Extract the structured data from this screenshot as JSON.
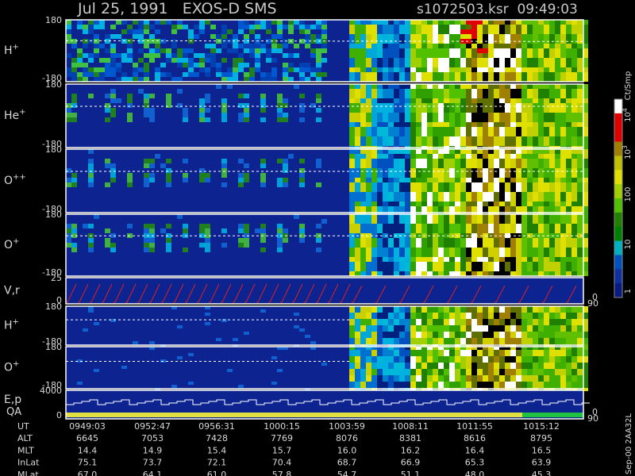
{
  "header": {
    "title": "Jul 25, 1991   EXOS-D SMS",
    "file": "s1072503.ksr  09:49:03"
  },
  "panels": [
    {
      "label": {
        "base": "H",
        "sup": "+"
      },
      "top": "180",
      "bottom": "-180"
    },
    {
      "label": {
        "base": "He",
        "sup": "+"
      },
      "top": "180",
      "bottom": "-180"
    },
    {
      "label": {
        "base": "O",
        "sup": "++"
      },
      "top": "180",
      "bottom": "-180"
    },
    {
      "label": {
        "base": "O",
        "sup": "+"
      },
      "top": "180",
      "bottom": "-180"
    },
    {
      "label": {
        "base": "V,r",
        "sup": ""
      },
      "top": "25",
      "bottom": "0",
      "right_top": "90",
      "right_bottom": "0"
    },
    {
      "label": {
        "base": "H",
        "sup": "+"
      },
      "top": "180",
      "bottom": "-180"
    },
    {
      "label": {
        "base": "O",
        "sup": "+"
      },
      "top": "180",
      "bottom": "-180"
    },
    {
      "label": {
        "base": "E,p",
        "sup": ""
      },
      "label2": "QA",
      "top": "4000",
      "bottom": "0",
      "right_top": "90",
      "right_bottom": "0"
    }
  ],
  "colorbar": {
    "unit": "Ct/Smp",
    "ticks": [
      {
        "base": "10",
        "sup": "4"
      },
      {
        "base": "10",
        "sup": "3"
      },
      {
        "base": "100",
        "sup": ""
      },
      {
        "base": "10",
        "sup": ""
      },
      {
        "base": "1",
        "sup": ""
      }
    ]
  },
  "footer": {
    "rows": [
      {
        "name": "UT",
        "values": [
          "0949:03",
          "0952:47",
          "0956:31",
          "1000:15",
          "1003:59",
          "1008:11",
          "1011:55",
          "1015:12"
        ]
      },
      {
        "name": "ALT",
        "values": [
          "6645",
          "7053",
          "7428",
          "7769",
          "8076",
          "8381",
          "8616",
          "8795"
        ]
      },
      {
        "name": "MLT",
        "values": [
          "14.4",
          "14.9",
          "15.4",
          "15.7",
          "16.0",
          "16.2",
          "16.4",
          "16.5"
        ]
      },
      {
        "name": "InLat",
        "values": [
          "75.1",
          "73.7",
          "72.1",
          "70.4",
          "68.7",
          "66.9",
          "65.3",
          "63.9"
        ]
      },
      {
        "name": "MLat",
        "values": [
          "67.0",
          "64.1",
          "61.0",
          "57.8",
          "54.7",
          "51.1",
          "48.0",
          "45.3"
        ]
      }
    ],
    "stamp": "Sep-00  2AA32L"
  }
}
